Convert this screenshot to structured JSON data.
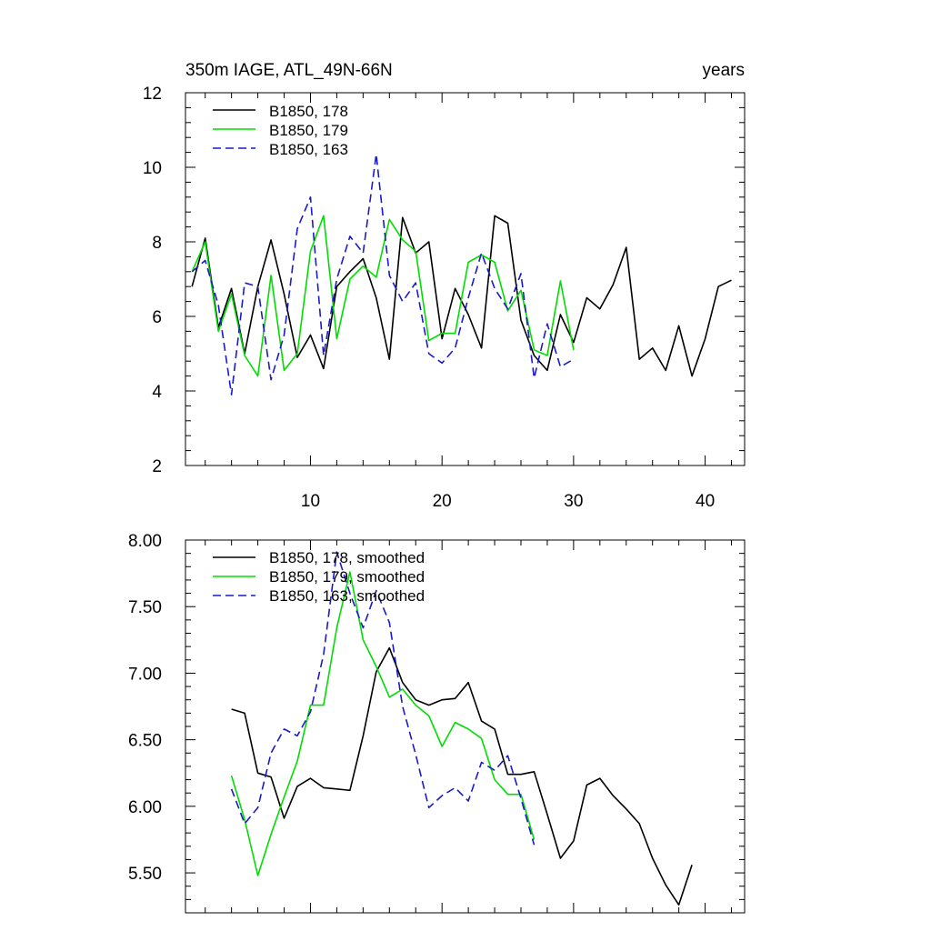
{
  "chart_data": [
    {
      "type": "line",
      "title": "350m IAGE, ATL_49N-66N",
      "units_label": "years",
      "xlim": [
        0.5,
        43
      ],
      "ylim": [
        2,
        12
      ],
      "x_ticks": [
        10,
        20,
        30,
        40
      ],
      "x_tick_labels": [
        "10",
        "20",
        "30",
        "40"
      ],
      "y_ticks": [
        2,
        4,
        6,
        8,
        10,
        12
      ],
      "y_tick_labels": [
        "2",
        "4",
        "6",
        "8",
        "10",
        "12"
      ],
      "legend_position": "top-left",
      "series": [
        {
          "name": "B1850, 178",
          "color": "#000000",
          "dash": "solid",
          "x": [
            1,
            2,
            3,
            4,
            5,
            6,
            7,
            8,
            9,
            10,
            11,
            12,
            13,
            14,
            15,
            16,
            17,
            18,
            19,
            20,
            21,
            22,
            23,
            24,
            25,
            26,
            27,
            28,
            29,
            30,
            31,
            32,
            33,
            34,
            35,
            36,
            37,
            38,
            39,
            40,
            41,
            42
          ],
          "values": [
            6.8,
            8.1,
            5.7,
            6.75,
            5.0,
            6.8,
            8.05,
            6.6,
            4.9,
            5.5,
            4.6,
            6.8,
            7.2,
            7.55,
            6.5,
            4.85,
            8.65,
            7.7,
            8.0,
            5.4,
            6.75,
            6.05,
            5.15,
            8.7,
            8.5,
            5.9,
            4.95,
            4.55,
            6.05,
            5.3,
            6.5,
            6.2,
            6.85,
            7.85,
            4.85,
            5.15,
            4.55,
            5.75,
            4.4,
            5.4,
            6.8,
            6.97
          ]
        },
        {
          "name": "B1850, 179",
          "color": "#00dd00",
          "dash": "solid",
          "x": [
            1,
            2,
            3,
            4,
            5,
            6,
            7,
            8,
            9,
            10,
            11,
            12,
            13,
            14,
            15,
            16,
            17,
            18,
            19,
            20,
            21,
            22,
            23,
            24,
            25,
            26,
            27,
            28,
            29,
            30
          ],
          "values": [
            7.2,
            8.0,
            5.6,
            6.6,
            4.95,
            4.4,
            7.1,
            4.55,
            5.0,
            7.75,
            8.7,
            5.4,
            7.0,
            7.35,
            7.05,
            8.6,
            8.05,
            7.75,
            5.35,
            5.55,
            5.55,
            7.45,
            7.65,
            7.45,
            6.15,
            6.7,
            5.1,
            4.95,
            6.95,
            5.1
          ]
        },
        {
          "name": "B1850, 163",
          "color": "#1a1acc",
          "dash": "dashed",
          "x": [
            1,
            2,
            3,
            4,
            5,
            6,
            7,
            8,
            9,
            10,
            11,
            12,
            13,
            14,
            15,
            16,
            17,
            18,
            19,
            20,
            21,
            22,
            23,
            24,
            25,
            26,
            27,
            28,
            29,
            30
          ],
          "values": [
            7.2,
            7.5,
            6.3,
            3.9,
            6.9,
            6.8,
            4.3,
            5.5,
            8.35,
            9.2,
            4.95,
            7.0,
            8.15,
            7.7,
            10.35,
            7.1,
            6.4,
            6.9,
            5.0,
            4.75,
            5.15,
            6.5,
            7.7,
            6.75,
            6.2,
            7.15,
            4.35,
            5.8,
            4.65,
            4.85
          ]
        }
      ]
    },
    {
      "type": "line",
      "title": "",
      "xlim": [
        0.5,
        43
      ],
      "ylim": [
        5.2,
        8.0
      ],
      "x_ticks": [
        10,
        20,
        30,
        40
      ],
      "y_ticks": [
        5.5,
        6.0,
        6.5,
        7.0,
        7.5,
        8.0
      ],
      "y_tick_labels": [
        "5.50",
        "6.00",
        "6.50",
        "7.00",
        "7.50",
        "8.00"
      ],
      "legend_position": "top-left",
      "series": [
        {
          "name": "B1850, 178, smoothed",
          "color": "#000000",
          "dash": "solid",
          "x": [
            4,
            5,
            6,
            7,
            8,
            9,
            10,
            11,
            12,
            13,
            14,
            15,
            16,
            17,
            18,
            19,
            20,
            21,
            22,
            23,
            24,
            25,
            26,
            27,
            28,
            29,
            30,
            31,
            32,
            33,
            34,
            35,
            36,
            37,
            38,
            39
          ],
          "values": [
            6.73,
            6.7,
            6.25,
            6.22,
            5.91,
            6.15,
            6.21,
            6.14,
            6.13,
            6.12,
            6.53,
            7.01,
            7.19,
            6.93,
            6.8,
            6.76,
            6.8,
            6.81,
            6.93,
            6.64,
            6.58,
            6.24,
            6.24,
            6.26,
            5.94,
            5.61,
            5.74,
            6.16,
            6.21,
            6.08,
            5.98,
            5.87,
            5.61,
            5.41,
            5.26,
            5.56
          ]
        },
        {
          "name": "B1850, 179, smoothed",
          "color": "#00dd00",
          "dash": "solid",
          "x": [
            4,
            5,
            6,
            7,
            8,
            9,
            10,
            11,
            12,
            13,
            14,
            15,
            16,
            17,
            18,
            19,
            20,
            21,
            22,
            23,
            24,
            25,
            26,
            27
          ],
          "values": [
            6.23,
            5.9,
            5.48,
            5.79,
            6.07,
            6.34,
            6.76,
            6.76,
            7.34,
            7.76,
            7.25,
            7.05,
            6.82,
            6.88,
            6.76,
            6.68,
            6.45,
            6.63,
            6.58,
            6.51,
            6.2,
            6.09,
            6.09,
            5.75
          ]
        },
        {
          "name": "B1850, 163, smoothed",
          "color": "#1a1acc",
          "dash": "dashed",
          "x": [
            4,
            5,
            6,
            7,
            8,
            9,
            10,
            11,
            12,
            13,
            14,
            15,
            16,
            17,
            18,
            19,
            20,
            21,
            22,
            23,
            24,
            25,
            26,
            27
          ],
          "values": [
            6.13,
            5.87,
            5.99,
            6.4,
            6.58,
            6.53,
            6.71,
            7.14,
            7.91,
            7.6,
            7.34,
            7.62,
            7.38,
            6.75,
            6.39,
            5.99,
            6.08,
            6.14,
            6.04,
            6.33,
            6.27,
            6.38,
            6.06,
            5.71
          ]
        }
      ]
    }
  ]
}
